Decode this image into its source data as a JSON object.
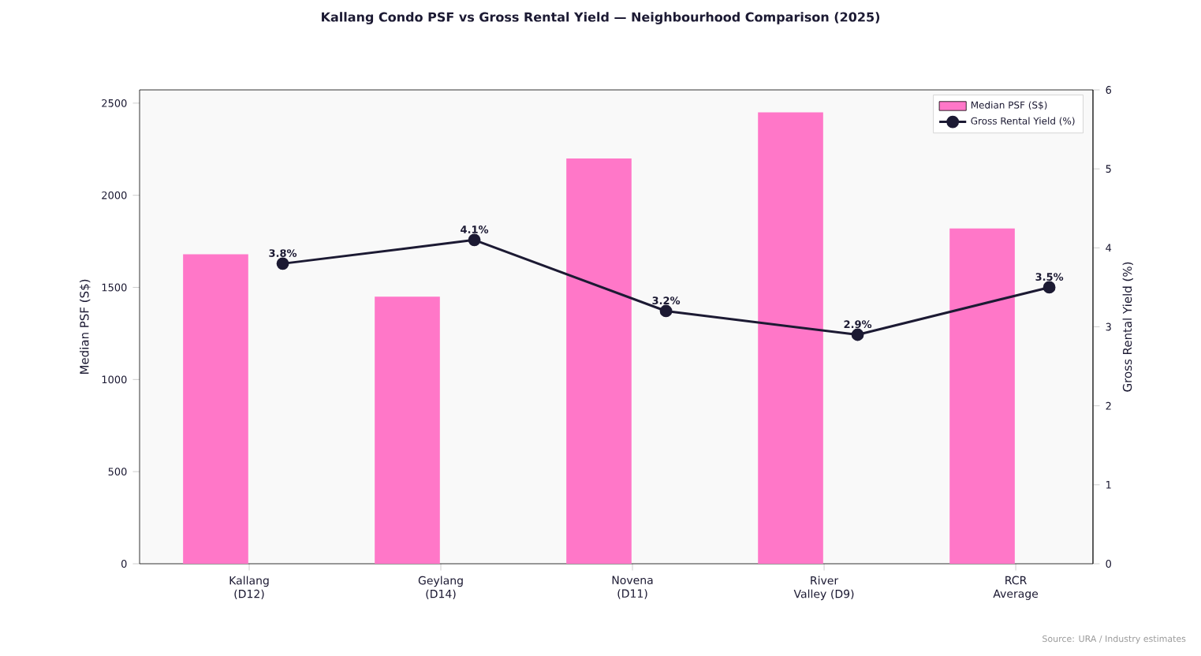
{
  "chart_data": {
    "type": "bar",
    "title": "Kallang Condo PSF vs Gross Rental Yield — Neighbourhood Comparison (2025)",
    "ylabel": "Median PSF (S$)",
    "y2label": "Gross Rental Yield (%)",
    "categories": [
      "Kallang (D12)",
      "Geylang (D14)",
      "Novena (D11)",
      "River Valley (D9)",
      "RCR Average"
    ],
    "series": [
      {
        "name": "Median PSF (S$)",
        "color": "#ff77c8",
        "values": [
          1680,
          1450,
          2200,
          2450,
          1820
        ]
      },
      {
        "name": "Gross Rental Yield (%)",
        "type": "line",
        "axis": "y2",
        "color": "#1c1a33",
        "marker": "circle",
        "line_style": "solid",
        "values": [
          3.8,
          4.1,
          3.2,
          2.9,
          3.5
        ],
        "value_labels": [
          "3.8%",
          "4.1%",
          "3.2%",
          "2.9%",
          "3.5%"
        ]
      }
    ],
    "ylim": [
      0,
      2572
    ],
    "yticks": [
      0,
      500,
      1000,
      1500,
      2000,
      2500
    ],
    "y2lim": [
      0,
      6
    ],
    "y2ticks": [
      0,
      1,
      2,
      3,
      4,
      5,
      6
    ],
    "grid": false,
    "legend": "top right",
    "annotations": [
      "Source: URA / Industry estimates"
    ]
  }
}
